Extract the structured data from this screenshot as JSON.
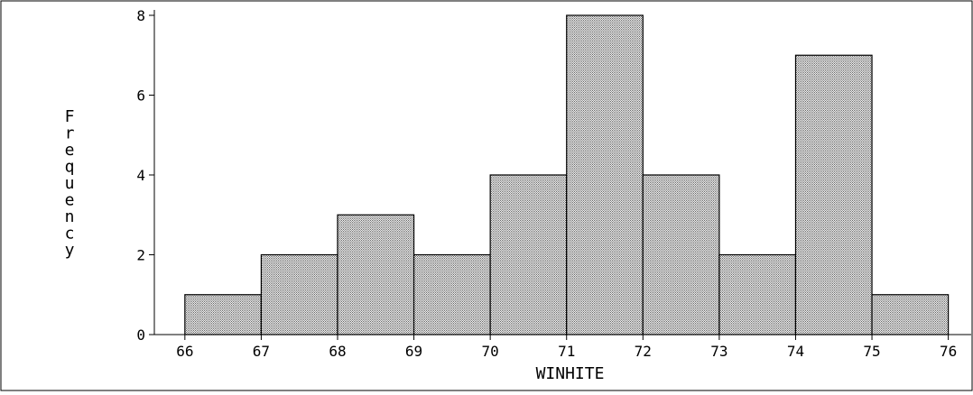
{
  "chart_data": {
    "type": "bar",
    "subtype": "histogram",
    "title": "",
    "xlabel": "WINHITE",
    "ylabel": "Frequency",
    "bin_edges": [
      66,
      67,
      68,
      69,
      70,
      71,
      72,
      73,
      74,
      75,
      76
    ],
    "values": [
      1,
      2,
      3,
      2,
      4,
      8,
      4,
      2,
      7,
      1
    ],
    "xlim": [
      65.6,
      76.3
    ],
    "ylim": [
      0,
      8
    ],
    "x_ticks": [
      66,
      67,
      68,
      69,
      70,
      71,
      72,
      73,
      74,
      75,
      76
    ],
    "y_ticks": [
      0,
      2,
      4,
      6,
      8
    ],
    "bar_fill": "stippled-gray",
    "grid": false,
    "legend": "none"
  }
}
